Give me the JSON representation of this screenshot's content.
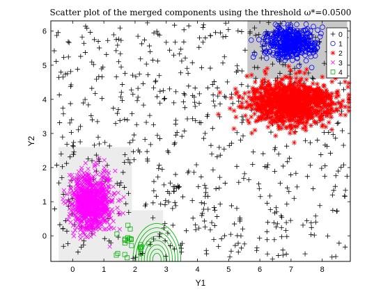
{
  "chart_data": {
    "type": "scatter",
    "title": "Scatter plot of the merged components using the threshold ω*=0.0500",
    "xlabel": "Y1",
    "ylabel": "Y2",
    "xlim": [
      -0.7,
      8.9
    ],
    "ylim": [
      -0.75,
      6.3
    ],
    "xticks": [
      "0",
      "1",
      "2",
      "3",
      "4",
      "5",
      "6",
      "7",
      "8"
    ],
    "yticks": [
      "0",
      "1",
      "2",
      "3",
      "4",
      "5",
      "6"
    ],
    "grid": false,
    "legend_position": "top-right",
    "series": [
      {
        "name": "0",
        "marker": "plus",
        "color": "#000000",
        "distribution": {
          "kind": "uniform",
          "x_range": [
            -0.6,
            8.8
          ],
          "y_range": [
            -0.7,
            6.25
          ],
          "count": 650
        }
      },
      {
        "name": "1",
        "marker": "circle",
        "color": "#0000ff",
        "distribution": {
          "kind": "gaussian",
          "center": [
            7.0,
            5.65
          ],
          "spread": [
            0.38,
            0.22
          ],
          "count": 450
        }
      },
      {
        "name": "2",
        "marker": "asterisk",
        "color": "#ff0000",
        "distribution": {
          "kind": "gaussian",
          "center": [
            7.0,
            3.9
          ],
          "spread": [
            0.68,
            0.33
          ],
          "count": 1200
        }
      },
      {
        "name": "3",
        "marker": "x",
        "color": "#ff00ff",
        "distribution": {
          "kind": "gaussian",
          "center": [
            0.6,
            1.0
          ],
          "spread": [
            0.33,
            0.42
          ],
          "count": 900
        }
      },
      {
        "name": "4",
        "marker": "square",
        "color": "#00b000",
        "distribution": {
          "kind": "gaussian",
          "center": [
            1.85,
            -0.2
          ],
          "spread": [
            0.24,
            0.22
          ],
          "count": 22
        }
      }
    ],
    "shaded_regions": [
      {
        "label": "component-1-region",
        "x": [
          5.6,
          8.8
        ],
        "y": [
          4.6,
          6.3
        ],
        "color": "#c8c8c8"
      },
      {
        "label": "component-3-region",
        "x": [
          -0.45,
          1.9
        ],
        "y": [
          -0.75,
          2.6
        ],
        "color": "#ececec"
      },
      {
        "label": "component-4-region",
        "x": [
          1.5,
          2.9
        ],
        "y": [
          -0.75,
          0.75
        ],
        "color": "#ececec"
      }
    ],
    "contour": {
      "color": "#00bb00",
      "center": [
        2.7,
        -0.7
      ],
      "radii": [
        0.15,
        0.25,
        0.35,
        0.45,
        0.55,
        0.65,
        0.75,
        0.85
      ]
    }
  }
}
